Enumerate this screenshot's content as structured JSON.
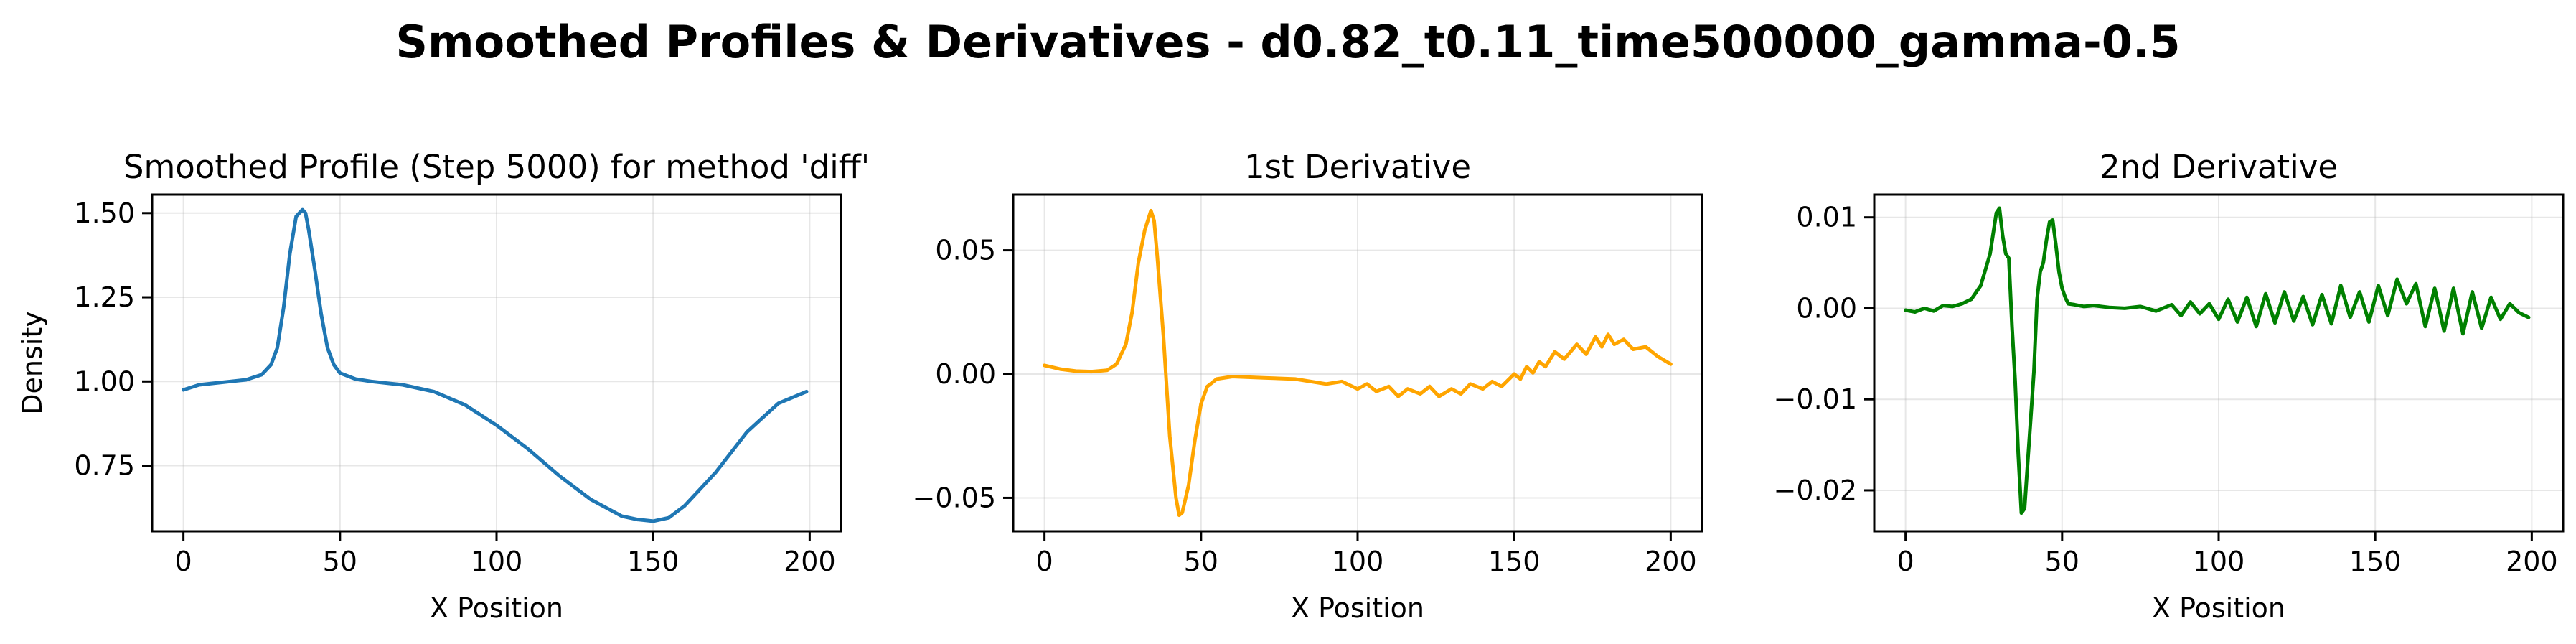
{
  "figure": {
    "title": "Smoothed Profiles & Derivatives - d0.82_t0.11_time500000_gamma-0.5"
  },
  "chart_data": [
    {
      "type": "line",
      "title": "Smoothed Profile (Step 5000) for method 'diff'",
      "xlabel": "X Position",
      "ylabel": "Density",
      "xlim": [
        -10,
        210
      ],
      "ylim": [
        0.555,
        1.555
      ],
      "xticks": [
        0,
        50,
        100,
        150,
        200
      ],
      "xtick_labels": [
        "0",
        "50",
        "100",
        "150",
        "200"
      ],
      "yticks": [
        0.75,
        1.0,
        1.25,
        1.5
      ],
      "ytick_labels": [
        "0.75",
        "1.00",
        "1.25",
        "1.50"
      ],
      "grid": true,
      "series": [
        {
          "color": "#1f77b4",
          "x": [
            0,
            5,
            10,
            15,
            20,
            25,
            28,
            30,
            32,
            34,
            36,
            38,
            39,
            40,
            42,
            44,
            46,
            48,
            50,
            55,
            60,
            70,
            80,
            90,
            100,
            110,
            120,
            130,
            140,
            145,
            150,
            155,
            160,
            170,
            180,
            190,
            199
          ],
          "y": [
            0.975,
            0.99,
            0.995,
            1.0,
            1.005,
            1.02,
            1.05,
            1.1,
            1.22,
            1.38,
            1.49,
            1.51,
            1.5,
            1.45,
            1.33,
            1.2,
            1.1,
            1.05,
            1.025,
            1.007,
            1.0,
            0.99,
            0.97,
            0.93,
            0.87,
            0.8,
            0.72,
            0.65,
            0.6,
            0.59,
            0.585,
            0.595,
            0.63,
            0.73,
            0.85,
            0.935,
            0.97
          ]
        }
      ]
    },
    {
      "type": "line",
      "title": "1st Derivative",
      "xlabel": "X Position",
      "ylabel": "",
      "xlim": [
        -10,
        210
      ],
      "ylim": [
        -0.0635,
        0.0725
      ],
      "xticks": [
        0,
        50,
        100,
        150,
        200
      ],
      "xtick_labels": [
        "0",
        "50",
        "100",
        "150",
        "200"
      ],
      "yticks": [
        -0.05,
        0.0,
        0.05
      ],
      "ytick_labels": [
        "−0.05",
        "0.00",
        "0.05"
      ],
      "grid": true,
      "series": [
        {
          "color": "#ffa500",
          "x": [
            0,
            5,
            10,
            15,
            20,
            23,
            26,
            28,
            30,
            32,
            34,
            35,
            36,
            38,
            40,
            42,
            43,
            44,
            46,
            48,
            50,
            52,
            55,
            60,
            70,
            80,
            90,
            95,
            100,
            103,
            106,
            110,
            113,
            116,
            120,
            123,
            126,
            130,
            133,
            136,
            140,
            143,
            146,
            150,
            152,
            154,
            156,
            158,
            160,
            163,
            166,
            170,
            173,
            176,
            178,
            180,
            182,
            185,
            188,
            192,
            196,
            200
          ],
          "y": [
            0.0035,
            0.002,
            0.0012,
            0.001,
            0.0015,
            0.004,
            0.012,
            0.025,
            0.045,
            0.058,
            0.066,
            0.062,
            0.048,
            0.015,
            -0.025,
            -0.05,
            -0.057,
            -0.056,
            -0.045,
            -0.027,
            -0.012,
            -0.005,
            -0.002,
            -0.001,
            -0.0015,
            -0.002,
            -0.004,
            -0.003,
            -0.006,
            -0.004,
            -0.007,
            -0.005,
            -0.009,
            -0.006,
            -0.008,
            -0.005,
            -0.009,
            -0.006,
            -0.008,
            -0.004,
            -0.006,
            -0.003,
            -0.005,
            0.0,
            -0.002,
            0.003,
            0.0005,
            0.005,
            0.003,
            0.009,
            0.006,
            0.012,
            0.008,
            0.015,
            0.011,
            0.016,
            0.012,
            0.014,
            0.01,
            0.011,
            0.007,
            0.004
          ]
        }
      ]
    },
    {
      "type": "line",
      "title": "2nd Derivative",
      "xlabel": "X Position",
      "ylabel": "",
      "xlim": [
        -10,
        210
      ],
      "ylim": [
        -0.0245,
        0.0125
      ],
      "xticks": [
        0,
        50,
        100,
        150,
        200
      ],
      "xtick_labels": [
        "0",
        "50",
        "100",
        "150",
        "200"
      ],
      "yticks": [
        -0.02,
        -0.01,
        0.0,
        0.01
      ],
      "ytick_labels": [
        "−0.02",
        "−0.01",
        "0.00",
        "0.01"
      ],
      "grid": true,
      "series": [
        {
          "color": "#008000",
          "x": [
            0,
            3,
            6,
            9,
            12,
            15,
            18,
            21,
            24,
            27,
            29,
            30,
            31,
            32,
            33,
            34,
            35,
            36,
            37,
            38,
            39,
            40,
            41,
            42,
            43,
            44,
            45,
            46,
            47,
            48,
            49,
            50,
            51,
            52,
            54,
            57,
            60,
            65,
            70,
            75,
            80,
            85,
            88,
            91,
            94,
            97,
            100,
            103,
            106,
            109,
            112,
            115,
            118,
            121,
            124,
            127,
            130,
            133,
            136,
            139,
            142,
            145,
            148,
            151,
            154,
            157,
            160,
            163,
            166,
            169,
            172,
            175,
            178,
            181,
            184,
            187,
            190,
            193,
            196,
            199
          ],
          "y": [
            -0.0002,
            -0.0004,
            0.0,
            -0.0003,
            0.0003,
            0.0002,
            0.0005,
            0.001,
            0.0025,
            0.006,
            0.0105,
            0.011,
            0.008,
            0.006,
            0.0055,
            -0.002,
            -0.008,
            -0.016,
            -0.0225,
            -0.022,
            -0.017,
            -0.012,
            -0.007,
            0.001,
            0.004,
            0.005,
            0.0075,
            0.0095,
            0.0097,
            0.007,
            0.004,
            0.0022,
            0.0012,
            0.0005,
            0.0004,
            0.0002,
            0.0003,
            0.0001,
            0.0,
            0.0002,
            -0.0003,
            0.0004,
            -0.0008,
            0.0007,
            -0.0006,
            0.0005,
            -0.0012,
            0.001,
            -0.0015,
            0.0012,
            -0.002,
            0.0016,
            -0.0016,
            0.0018,
            -0.0014,
            0.0013,
            -0.0018,
            0.0015,
            -0.0017,
            0.0025,
            -0.001,
            0.0018,
            -0.0015,
            0.0025,
            -0.0008,
            0.0032,
            0.0005,
            0.0027,
            -0.002,
            0.0022,
            -0.0025,
            0.0022,
            -0.0028,
            0.0018,
            -0.0022,
            0.0012,
            -0.0012,
            0.0005,
            -0.0005,
            -0.001
          ]
        }
      ]
    }
  ]
}
